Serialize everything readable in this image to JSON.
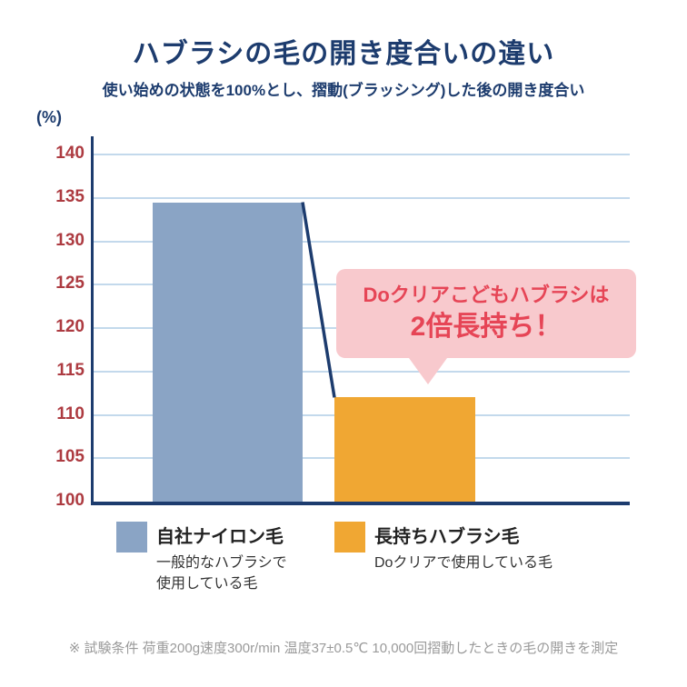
{
  "page": {
    "title": "ハブラシの毛の開き度合いの違い",
    "subtitle": "使い始めの状態を100%とし、摺動(ブラッシング)した後の開き度合い",
    "footnote": "※ 試験条件 荷重200g速度300r/min 温度37±0.5℃ 10,000回摺動したときの毛の開きを測定"
  },
  "chart_data": {
    "type": "bar",
    "title": "ハブラシの毛の開き度合いの違い",
    "subtitle": "使い始めの状態を100%とし、摺動(ブラッシング)した後の開き度合い",
    "unit_label": "(%)",
    "categories": [
      "自社ナイロン毛",
      "長持ちハブラシ毛"
    ],
    "values": [
      134.5,
      112
    ],
    "ylim": [
      100,
      140
    ],
    "yticks": [
      100,
      105,
      110,
      115,
      120,
      125,
      130,
      135,
      140
    ],
    "grid": true,
    "legend_position": "bottom",
    "bar_colors": [
      "#8aa4c5",
      "#f0a733"
    ],
    "annotation": "Doクリアこどもハブラシは2倍長持ち！"
  },
  "callout": {
    "line1": "Doクリアこどもハブラシは",
    "line2": "2倍長持ち！"
  },
  "legend": {
    "items": [
      {
        "label": "自社ナイロン毛",
        "desc1": "一般的なハブラシで",
        "desc2": "使用している毛",
        "color": "#8aa4c5"
      },
      {
        "label": "長持ちハブラシ毛",
        "desc1": "Doクリアで使用している毛",
        "desc2": "",
        "color": "#f0a733"
      }
    ]
  },
  "colors": {
    "title_text": "#1d3c6e",
    "axis": "#1d3c6e",
    "tick_label": "#ad3b41",
    "gridline": "#c3d9ec",
    "callout_bg": "#f8c9cd",
    "callout_text": "#e64556",
    "footnote": "#9a9a9a"
  }
}
